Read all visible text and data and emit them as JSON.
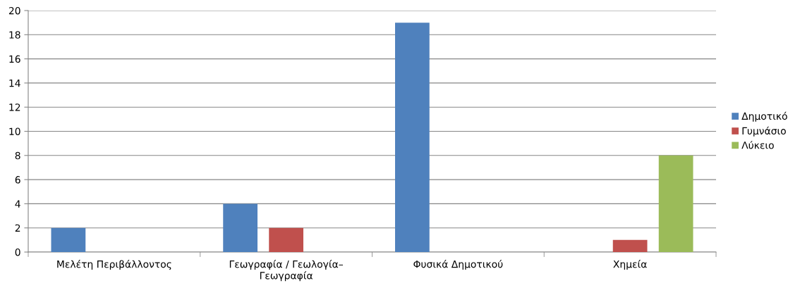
{
  "chart_data": {
    "type": "bar",
    "categories": [
      "Μελέτη Περιβάλλοντος",
      "Γεωγραφία / Γεωλογία–Γεωγραφία",
      "Φυσικά Δημοτικού",
      "Χημεία"
    ],
    "series": [
      {
        "name": "Δημοτικό",
        "color": "#4f81bd",
        "values": [
          2,
          4,
          19,
          0
        ]
      },
      {
        "name": "Γυμνάσιο",
        "color": "#c0504d",
        "values": [
          0,
          2,
          0,
          1
        ]
      },
      {
        "name": "Λύκειο",
        "color": "#9bbb59",
        "values": [
          0,
          0,
          0,
          8
        ]
      }
    ],
    "ylim": [
      0,
      20
    ],
    "yticks": [
      0,
      2,
      4,
      6,
      8,
      10,
      12,
      14,
      16,
      18,
      20
    ],
    "grid": "y",
    "legend": "right"
  }
}
